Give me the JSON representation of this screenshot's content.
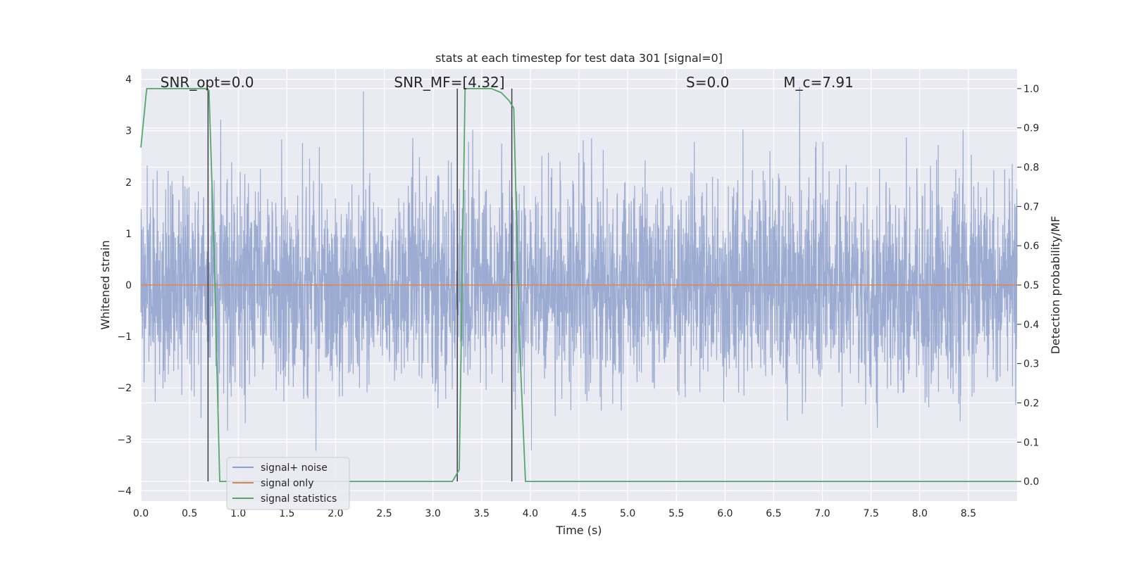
{
  "chart_data": {
    "type": "line",
    "title": "stats at each timestep for test data 301 [signal=0]",
    "xlabel": "Time (s)",
    "ylabel": "Whitened strain",
    "y2label": "Detection probability/MF",
    "xlim": [
      0.0,
      9.0
    ],
    "ylim": [
      -4.2,
      4.2
    ],
    "y2lim": [
      -0.05,
      1.05
    ],
    "x_ticks": [
      "0.0",
      "0.5",
      "1.0",
      "1.5",
      "2.0",
      "2.5",
      "3.0",
      "3.5",
      "4.0",
      "4.5",
      "5.0",
      "5.5",
      "6.0",
      "6.5",
      "7.0",
      "7.5",
      "8.0",
      "8.5"
    ],
    "y_ticks": [
      "4",
      "3",
      "2",
      "1",
      "0",
      "−1",
      "−2",
      "−3",
      "−4"
    ],
    "y2_ticks": [
      "1.0",
      "0.9",
      "0.8",
      "0.7",
      "0.6",
      "0.5",
      "0.4",
      "0.3",
      "0.2",
      "0.1",
      "0.0"
    ],
    "grid": true,
    "legend_position": "lower-left",
    "annotations": [
      {
        "text": "SNR_opt=0.0",
        "x": 0.2
      },
      {
        "text": "SNR_MF=[4.32]",
        "x": 2.6
      },
      {
        "text": "S=0.0",
        "x": 5.6
      },
      {
        "text": "M_c=7.91",
        "x": 6.6
      }
    ],
    "series": [
      {
        "name": "signal+ noise",
        "color": "#8da0cb",
        "kind": "noise",
        "approx_std": 1.0,
        "approx_peak": 4.0
      },
      {
        "name": "signal only",
        "color": "#dd8452",
        "x": [
          0.0,
          9.0
        ],
        "y": [
          0.0,
          0.0
        ]
      },
      {
        "name": "signal statistics",
        "color": "#55a868",
        "axis": "right",
        "x": [
          0.0,
          0.06,
          0.12,
          0.25,
          0.5,
          0.66,
          0.7,
          0.75,
          0.81,
          1.0,
          2.0,
          3.0,
          3.2,
          3.27,
          3.33,
          3.4,
          3.6,
          3.7,
          3.78,
          3.83,
          3.89,
          3.95,
          4.5,
          6.0,
          7.4,
          8.0,
          9.0
        ],
        "y": [
          0.85,
          1.0,
          1.0,
          1.0,
          1.0,
          1.0,
          0.995,
          0.6,
          0.0,
          0.0,
          0.0,
          0.0,
          0.0,
          0.03,
          1.0,
          1.0,
          1.0,
          0.99,
          0.97,
          0.95,
          0.35,
          0.0,
          0.0,
          0.0,
          0.0,
          0.0,
          0.0
        ]
      }
    ],
    "vlines": [
      0.69,
      3.25,
      3.81
    ]
  }
}
